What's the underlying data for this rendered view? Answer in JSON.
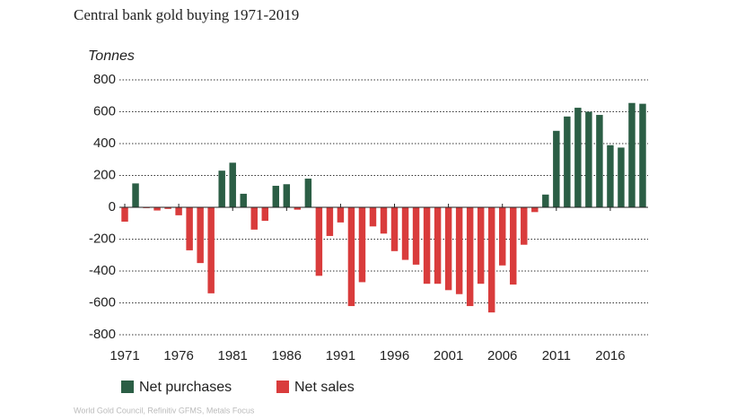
{
  "chart_data": {
    "type": "bar",
    "title": "Central bank gold buying 1971-2019",
    "y_label": "Tonnes",
    "source": "World Gold Council, Refinitiv GFMS, Metals Focus",
    "x": [
      1971,
      1972,
      1973,
      1974,
      1975,
      1976,
      1977,
      1978,
      1979,
      1980,
      1981,
      1982,
      1983,
      1984,
      1985,
      1986,
      1987,
      1988,
      1989,
      1990,
      1991,
      1992,
      1993,
      1994,
      1995,
      1996,
      1997,
      1998,
      1999,
      2000,
      2001,
      2002,
      2003,
      2004,
      2005,
      2006,
      2007,
      2008,
      2009,
      2010,
      2011,
      2012,
      2013,
      2014,
      2015,
      2016,
      2017,
      2018,
      2019
    ],
    "series": [
      {
        "name": "Net purchases",
        "color": "#2b5e45",
        "values": [
          null,
          150,
          null,
          null,
          null,
          null,
          null,
          null,
          null,
          230,
          280,
          85,
          null,
          null,
          135,
          145,
          null,
          180,
          null,
          null,
          null,
          null,
          null,
          null,
          null,
          null,
          null,
          null,
          null,
          null,
          null,
          null,
          null,
          null,
          null,
          null,
          null,
          null,
          null,
          80,
          480,
          570,
          625,
          600,
          580,
          390,
          375,
          655,
          650
        ]
      },
      {
        "name": "Net sales",
        "color": "#d93c3c",
        "values": [
          -90,
          null,
          -5,
          -20,
          -10,
          -50,
          -270,
          -350,
          -540,
          null,
          null,
          null,
          -140,
          -85,
          null,
          null,
          -15,
          null,
          -430,
          -180,
          -95,
          -620,
          -470,
          -120,
          -165,
          -275,
          -330,
          -360,
          -480,
          -480,
          -520,
          -545,
          -620,
          -480,
          -660,
          -365,
          -485,
          -235,
          -30,
          null,
          null,
          null,
          null,
          null,
          null,
          null,
          null,
          null,
          null
        ]
      }
    ],
    "xlim": [
      1970.5,
      2019.5
    ],
    "xticks": [
      1971,
      1976,
      1981,
      1986,
      1991,
      1996,
      2001,
      2006,
      2011,
      2016
    ],
    "ylim": [
      -800,
      800
    ],
    "yticks": [
      -800,
      -600,
      -400,
      -200,
      0,
      200,
      400,
      600,
      800
    ],
    "grid": true
  }
}
